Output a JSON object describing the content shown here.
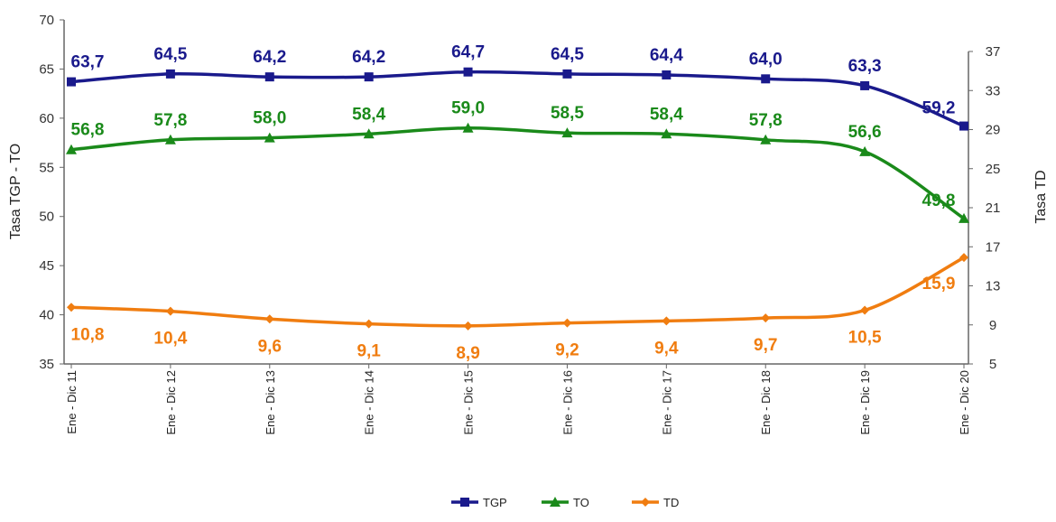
{
  "chart_data": {
    "type": "line",
    "categories": [
      "Ene - Dic 11",
      "Ene - Dic 12",
      "Ene - Dic 13",
      "Ene - Dic 14",
      "Ene - Dic 15",
      "Ene - Dic 16",
      "Ene - Dic 17",
      "Ene - Dic 18",
      "Ene - Dic 19",
      "Ene - Dic 20"
    ],
    "series": [
      {
        "name": "TGP",
        "axis": "left",
        "color": "#1a1a8c",
        "marker": "square",
        "values": [
          63.7,
          64.5,
          64.2,
          64.2,
          64.7,
          64.5,
          64.4,
          64.0,
          63.3,
          59.2
        ],
        "labels": [
          "63,7",
          "64,5",
          "64,2",
          "64,2",
          "64,7",
          "64,5",
          "64,4",
          "64,0",
          "63,3",
          "59,2"
        ]
      },
      {
        "name": "TO",
        "axis": "left",
        "color": "#1a8a1a",
        "marker": "triangle",
        "values": [
          56.8,
          57.8,
          58.0,
          58.4,
          59.0,
          58.5,
          58.4,
          57.8,
          56.6,
          49.8
        ],
        "labels": [
          "56,8",
          "57,8",
          "58,0",
          "58,4",
          "59,0",
          "58,5",
          "58,4",
          "57,8",
          "56,6",
          "49,8"
        ]
      },
      {
        "name": "TD",
        "axis": "right",
        "color": "#f07d10",
        "marker": "diamond",
        "values": [
          10.8,
          10.4,
          9.6,
          9.1,
          8.9,
          9.2,
          9.4,
          9.7,
          10.5,
          15.9
        ],
        "labels": [
          "10,8",
          "10,4",
          "9,6",
          "9,1",
          "8,9",
          "9,2",
          "9,4",
          "9,7",
          "10,5",
          "15,9"
        ]
      }
    ],
    "ylabel": "Tasa TGP - TO",
    "y2label": "Tasa TD",
    "ylim": [
      35,
      70
    ],
    "yticks": [
      35,
      40,
      45,
      50,
      55,
      60,
      65,
      70
    ],
    "y2lim": [
      5,
      37
    ],
    "y2ticks": [
      5,
      9,
      13,
      17,
      21,
      25,
      29,
      33,
      37
    ],
    "grid": false,
    "legend": "bottom-center"
  }
}
